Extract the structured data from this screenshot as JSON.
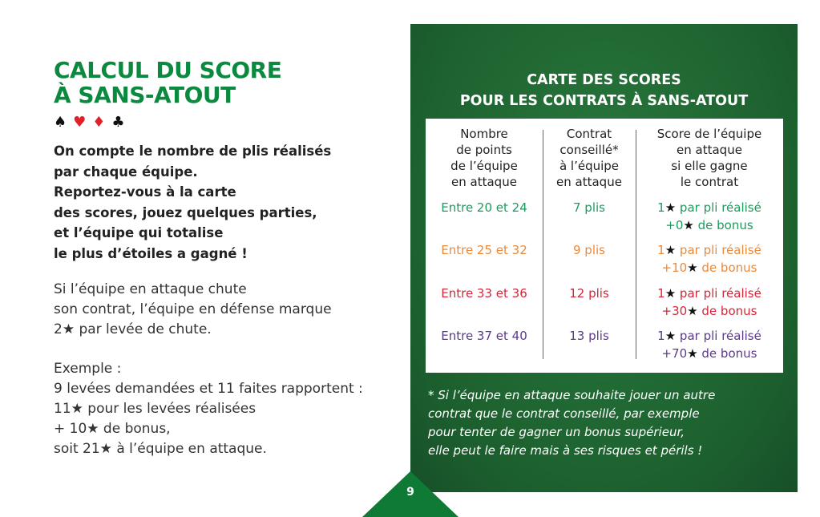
{
  "title": {
    "line1": "CALCUL DU SCORE",
    "line2": "À SANS-ATOUT"
  },
  "suits": [
    "♠",
    "♥",
    "♦",
    "♣"
  ],
  "intro": [
    "On compte le nombre de plis réalisés",
    "par chaque équipe.",
    "Reportez-vous à la carte",
    "des scores, jouez quelques parties,",
    "et l’équipe qui totalise",
    "le plus d’étoiles a gagné !"
  ],
  "chute": [
    "Si l’équipe en attaque chute",
    "son contrat, l’équipe en défense marque",
    "2★ par levée de chute."
  ],
  "exemple": [
    "Exemple :",
    "9 levées demandées et 11 faites rapportent :",
    "11★ pour les levées réalisées",
    "+ 10★ de bonus,",
    "soit 21★ à l’équipe en attaque."
  ],
  "panel": {
    "title1": "CARTE DES SCORES",
    "title2": "POUR LES CONTRATS À SANS-ATOUT",
    "headers": [
      [
        "Nombre",
        "de points",
        "de l’équipe",
        "en attaque"
      ],
      [
        "Contrat",
        "conseillé*",
        "à l’équipe",
        "en attaque"
      ],
      [
        "Score de l’équipe",
        "en attaque",
        "si elle gagne",
        "le contrat"
      ]
    ],
    "rows": [
      {
        "points": "Entre 20 et 24",
        "contrat": "7 plis",
        "score1": "1★ par pli réalisé",
        "score2": "+0★ de bonus",
        "color": "#1f9a5e"
      },
      {
        "points": "Entre 25 et 32",
        "contrat": "9 plis",
        "score1": "1★ par pli réalisé",
        "score2": "+10★ de bonus",
        "color": "#e98a3c"
      },
      {
        "points": "Entre 33 et 36",
        "contrat": "12 plis",
        "score1": "1★ par pli réalisé",
        "score2": "+30★ de bonus",
        "color": "#d3273a"
      },
      {
        "points": "Entre 37 et 40",
        "contrat": "13 plis",
        "score1": "1★ par pli réalisé",
        "score2": "+70★ de bonus",
        "color": "#5b3a8c"
      }
    ],
    "note": [
      "* Si l’équipe en attaque souhaite jouer un autre",
      "contrat que le contrat conseillé,  par exemple",
      "pour tenter de gagner un bonus  supérieur,",
      "elle peut le faire mais à ses risques et périls !"
    ]
  },
  "page_number": "9"
}
